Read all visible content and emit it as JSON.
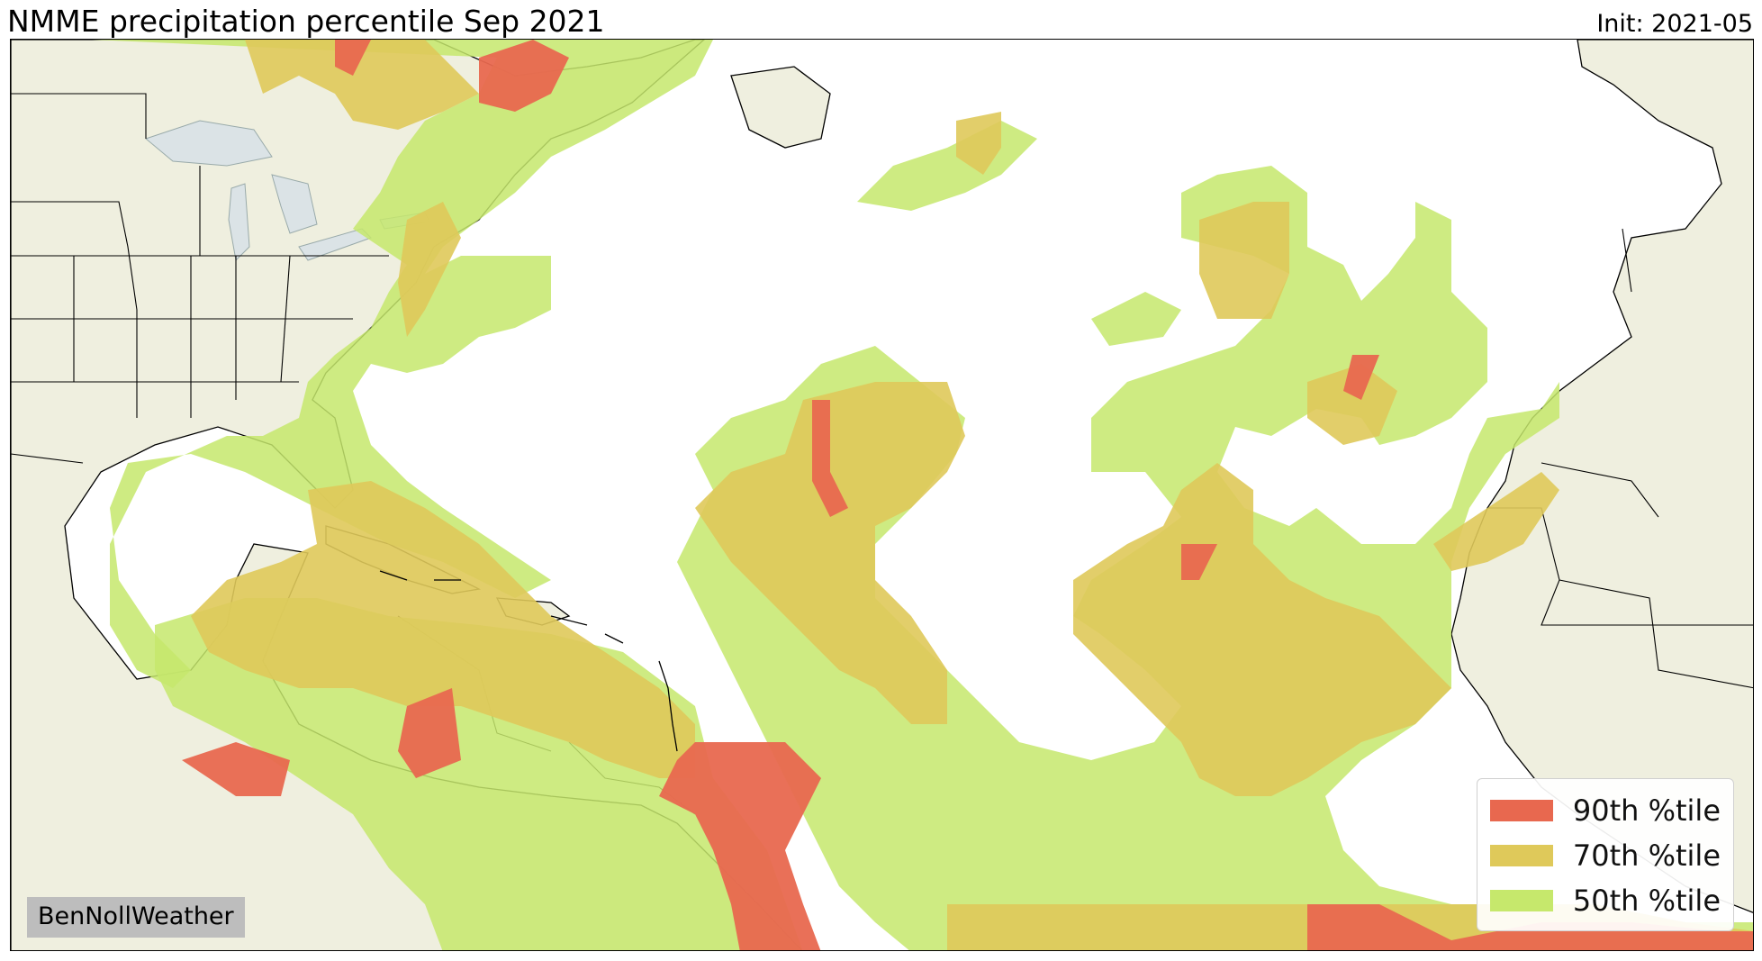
{
  "header": {
    "title": "NMME precipitation percentile Sep 2021",
    "init_label": "Init: 2021-05"
  },
  "colors": {
    "ocean": "#ffffff",
    "land": "#efefdf",
    "lakes": "#dbe3e6",
    "p50": "#c6e86c",
    "p70": "#dfc95a",
    "p90": "#e8684f",
    "border": "#000000"
  },
  "legend": {
    "items": [
      {
        "label": "90th %tile",
        "color": "#e8684f"
      },
      {
        "label": "70th %tile",
        "color": "#dfc95a"
      },
      {
        "label": "50th %tile",
        "color": "#c6e86c"
      }
    ]
  },
  "credit": "BenNollWeather"
}
